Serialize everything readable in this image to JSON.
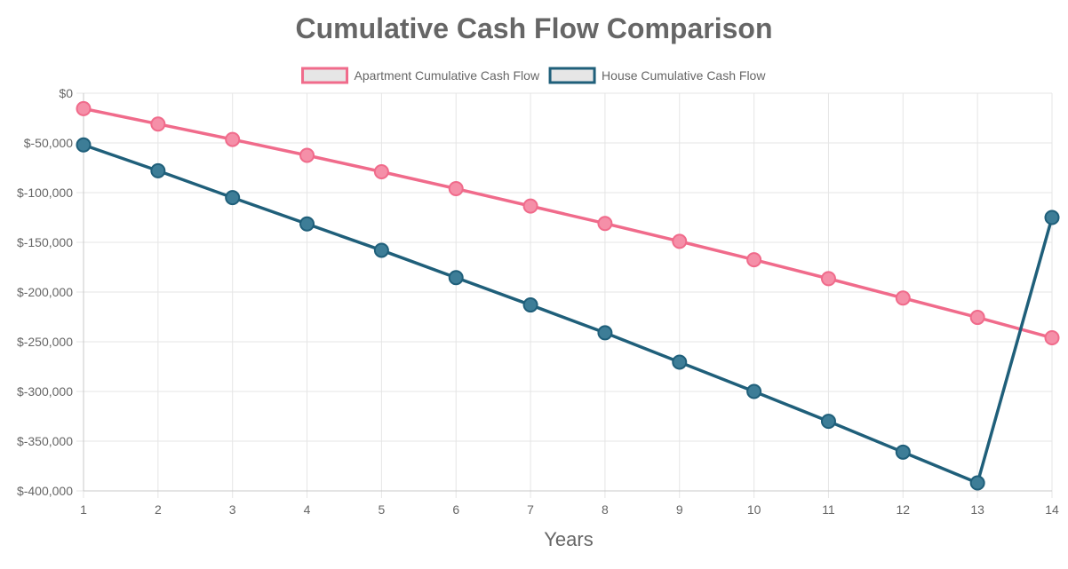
{
  "chart_data": {
    "type": "line",
    "title": "Cumulative Cash Flow Comparison",
    "xlabel": "Years",
    "ylabel": "",
    "x": [
      1,
      2,
      3,
      4,
      5,
      6,
      7,
      8,
      9,
      10,
      11,
      12,
      13,
      14
    ],
    "ylim": [
      -400000,
      0
    ],
    "y_ticks": [
      0,
      -50000,
      -100000,
      -150000,
      -200000,
      -250000,
      -300000,
      -350000,
      -400000
    ],
    "y_tick_labels": [
      "$0",
      "$-50,000",
      "$-100,000",
      "$-150,000",
      "$-200,000",
      "$-250,000",
      "$-300,000",
      "$-350,000",
      "$-400,000"
    ],
    "x_tick_labels": [
      "1",
      "2",
      "3",
      "4",
      "5",
      "6",
      "7",
      "8",
      "9",
      "10",
      "11",
      "12",
      "13",
      "14"
    ],
    "grid": true,
    "legend_position": "top",
    "series": [
      {
        "name": "Apartment Cumulative Cash Flow",
        "color": "#f06b8b",
        "point_fill": "#f58fa8",
        "values": [
          -15500,
          -31000,
          -46500,
          -62500,
          -79000,
          -96000,
          -113500,
          -131000,
          -149000,
          -167500,
          -186500,
          -206000,
          -225500,
          -246000
        ]
      },
      {
        "name": "House Cumulative Cash Flow",
        "color": "#1f5f7a",
        "point_fill": "#3d7d97",
        "values": [
          -52000,
          -78000,
          -105000,
          -131500,
          -158000,
          -185500,
          -213000,
          -241000,
          -270500,
          -300000,
          -330000,
          -361000,
          -392000,
          -125000
        ]
      }
    ]
  }
}
